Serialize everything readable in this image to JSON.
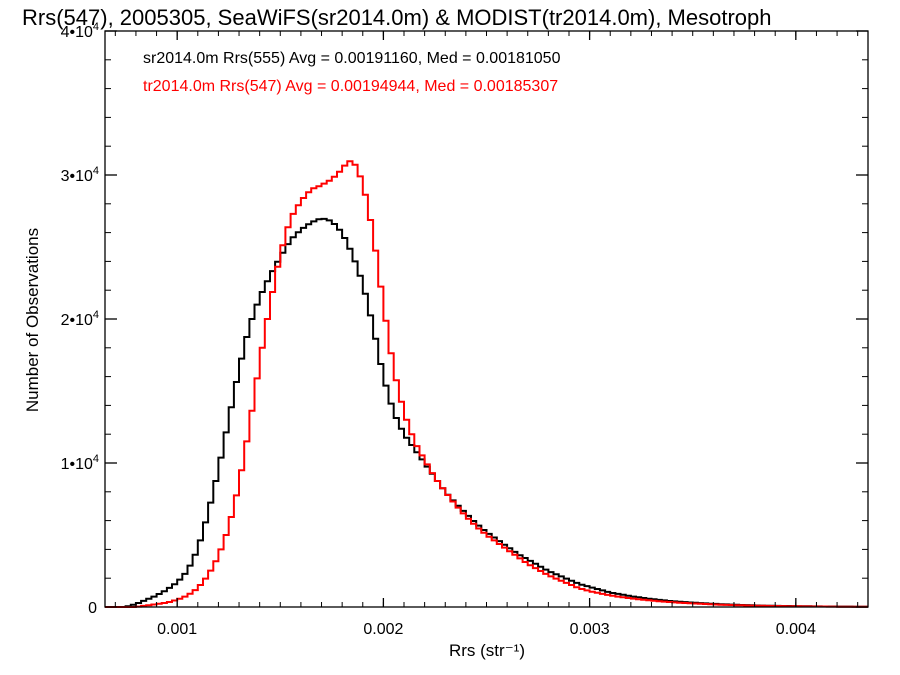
{
  "chart_data": {
    "type": "line",
    "title": "Rrs(547), 2005305, SeaWiFS(sr2014.0m) & MODIST(tr2014.0m), Mesotroph",
    "xlabel": "Rrs (str⁻¹)",
    "ylabel": "Number of Observations",
    "xlim": [
      0.00065,
      0.00435
    ],
    "ylim": [
      0,
      40000
    ],
    "x_ticks": [
      {
        "value": 0.001,
        "label": "0.001"
      },
      {
        "value": 0.002,
        "label": "0.002"
      },
      {
        "value": 0.003,
        "label": "0.003"
      },
      {
        "value": 0.004,
        "label": "0.004"
      }
    ],
    "y_ticks": [
      {
        "value": 0,
        "base": "0",
        "exp": ""
      },
      {
        "value": 10000,
        "base": "1•10",
        "exp": "4"
      },
      {
        "value": 20000,
        "base": "2•10",
        "exp": "4"
      },
      {
        "value": 30000,
        "base": "3•10",
        "exp": "4"
      },
      {
        "value": 40000,
        "base": "4•10",
        "exp": "4"
      }
    ],
    "grid": false,
    "legend_position": "top-left",
    "series": [
      {
        "name": "sr2014.0m Rrs(555) Avg = 0.00191160, Med = 0.00181050",
        "color": "#000000",
        "points": [
          [
            0.00065,
            0
          ],
          [
            0.00075,
            0
          ],
          [
            0.0008,
            200
          ],
          [
            0.00085,
            500
          ],
          [
            0.0009,
            800
          ],
          [
            0.00095,
            1200
          ],
          [
            0.001,
            1700
          ],
          [
            0.00105,
            2500
          ],
          [
            0.0011,
            4000
          ],
          [
            0.00115,
            6500
          ],
          [
            0.0012,
            9500
          ],
          [
            0.00125,
            13000
          ],
          [
            0.0013,
            16500
          ],
          [
            0.00135,
            19500
          ],
          [
            0.0014,
            21500
          ],
          [
            0.00145,
            23000
          ],
          [
            0.0015,
            24300
          ],
          [
            0.00155,
            25500
          ],
          [
            0.0016,
            26200
          ],
          [
            0.00165,
            26700
          ],
          [
            0.0017,
            27000
          ],
          [
            0.00175,
            26800
          ],
          [
            0.0018,
            26000
          ],
          [
            0.00185,
            24500
          ],
          [
            0.0019,
            22500
          ],
          [
            0.00195,
            19500
          ],
          [
            0.002,
            16000
          ],
          [
            0.00205,
            13500
          ],
          [
            0.0021,
            12000
          ],
          [
            0.00215,
            11000
          ],
          [
            0.0022,
            10000
          ],
          [
            0.00225,
            9000
          ],
          [
            0.0023,
            8000
          ],
          [
            0.00235,
            7200
          ],
          [
            0.0024,
            6500
          ],
          [
            0.00245,
            5800
          ],
          [
            0.0025,
            5200
          ],
          [
            0.00255,
            4700
          ],
          [
            0.0026,
            4200
          ],
          [
            0.00265,
            3700
          ],
          [
            0.0027,
            3300
          ],
          [
            0.00275,
            2900
          ],
          [
            0.0028,
            2500
          ],
          [
            0.00285,
            2200
          ],
          [
            0.0029,
            1900
          ],
          [
            0.00295,
            1600
          ],
          [
            0.003,
            1400
          ],
          [
            0.0031,
            1000
          ],
          [
            0.0032,
            750
          ],
          [
            0.0033,
            550
          ],
          [
            0.0034,
            400
          ],
          [
            0.0035,
            300
          ],
          [
            0.0036,
            220
          ],
          [
            0.0037,
            160
          ],
          [
            0.0038,
            110
          ],
          [
            0.0039,
            80
          ],
          [
            0.004,
            60
          ],
          [
            0.0041,
            40
          ],
          [
            0.0042,
            30
          ],
          [
            0.00435,
            20
          ]
        ]
      },
      {
        "name": "tr2014.0m Rrs(547) Avg = 0.00194944, Med = 0.00185307",
        "color": "#ff0000",
        "points": [
          [
            0.00065,
            0
          ],
          [
            0.0008,
            0
          ],
          [
            0.00085,
            100
          ],
          [
            0.0009,
            200
          ],
          [
            0.00095,
            300
          ],
          [
            0.001,
            500
          ],
          [
            0.00105,
            800
          ],
          [
            0.0011,
            1300
          ],
          [
            0.00115,
            2200
          ],
          [
            0.0012,
            3500
          ],
          [
            0.00125,
            5500
          ],
          [
            0.0013,
            8500
          ],
          [
            0.00135,
            12500
          ],
          [
            0.0014,
            17000
          ],
          [
            0.00145,
            21000
          ],
          [
            0.0015,
            24500
          ],
          [
            0.00155,
            27000
          ],
          [
            0.0016,
            28200
          ],
          [
            0.00165,
            29000
          ],
          [
            0.0017,
            29300
          ],
          [
            0.00175,
            29700
          ],
          [
            0.0018,
            30400
          ],
          [
            0.00183,
            31000
          ],
          [
            0.00186,
            30800
          ],
          [
            0.0019,
            29500
          ],
          [
            0.00195,
            26000
          ],
          [
            0.002,
            21000
          ],
          [
            0.00205,
            16500
          ],
          [
            0.0021,
            13500
          ],
          [
            0.00215,
            11500
          ],
          [
            0.0022,
            10200
          ],
          [
            0.00225,
            9000
          ],
          [
            0.0023,
            8000
          ],
          [
            0.00235,
            7100
          ],
          [
            0.0024,
            6300
          ],
          [
            0.00245,
            5600
          ],
          [
            0.0025,
            5000
          ],
          [
            0.00255,
            4500
          ],
          [
            0.0026,
            4000
          ],
          [
            0.00265,
            3500
          ],
          [
            0.0027,
            3000
          ],
          [
            0.00275,
            2600
          ],
          [
            0.0028,
            2200
          ],
          [
            0.00285,
            1900
          ],
          [
            0.0029,
            1600
          ],
          [
            0.00295,
            1300
          ],
          [
            0.003,
            1100
          ],
          [
            0.0031,
            800
          ],
          [
            0.0032,
            600
          ],
          [
            0.0033,
            450
          ],
          [
            0.0034,
            330
          ],
          [
            0.0035,
            250
          ],
          [
            0.0036,
            180
          ],
          [
            0.0037,
            130
          ],
          [
            0.0038,
            90
          ],
          [
            0.0039,
            70
          ],
          [
            0.004,
            50
          ],
          [
            0.0041,
            35
          ],
          [
            0.0042,
            25
          ],
          [
            0.00435,
            15
          ]
        ]
      }
    ]
  }
}
